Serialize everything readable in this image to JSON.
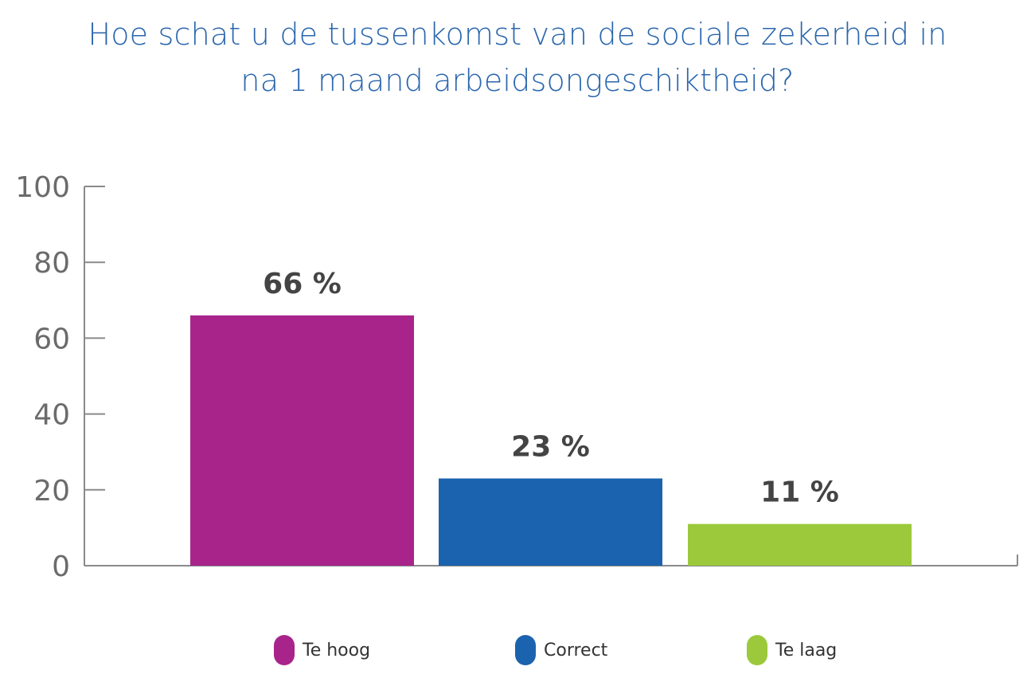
{
  "chart_data": {
    "type": "bar",
    "title_lines": [
      "Hoe schat u de tussenkomst van de sociale zekerheid in",
      "na 1 maand arbeidsongeschiktheid?"
    ],
    "categories": [
      "Te hoog",
      "Correct",
      "Te laag"
    ],
    "values": [
      66,
      23,
      11
    ],
    "value_labels": [
      "66 %",
      "23 %",
      "11 %"
    ],
    "colors": [
      "#a8248b",
      "#1b63ae",
      "#9bc93b"
    ],
    "yticks": [
      "0",
      "20",
      "40",
      "60",
      "80",
      "100"
    ],
    "ylim": [
      0,
      100
    ],
    "xlabel": "",
    "ylabel": "",
    "grid": false,
    "legend_position": "bottom"
  }
}
